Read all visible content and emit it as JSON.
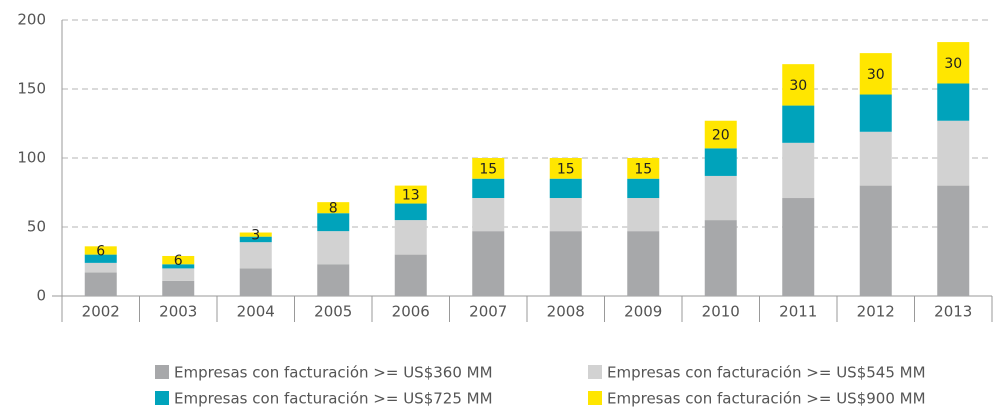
{
  "chart_data": {
    "type": "stacked_bar",
    "categories": [
      "2002",
      "2003",
      "2004",
      "2005",
      "2006",
      "2007",
      "2008",
      "2009",
      "2010",
      "2011",
      "2012",
      "2013"
    ],
    "series": [
      {
        "name": "Empresas con facturación >= US$360 MM",
        "color": "#a7a8aa",
        "values": [
          17,
          11,
          20,
          23,
          30,
          47,
          47,
          47,
          55,
          71,
          80,
          80
        ]
      },
      {
        "name": "Empresas con facturación >= US$545 MM",
        "color": "#d2d2d2",
        "values": [
          7,
          9,
          19,
          24,
          25,
          24,
          24,
          24,
          32,
          40,
          39,
          47
        ]
      },
      {
        "name": "Empresas con facturación >= US$725 MM",
        "color": "#00a3bb",
        "values": [
          6,
          3,
          4,
          13,
          12,
          14,
          14,
          14,
          20,
          27,
          27,
          27
        ]
      },
      {
        "name": "Empresas con facturación >= US$900 MM",
        "color": "#ffe600",
        "values": [
          6,
          6,
          3,
          8,
          13,
          15,
          15,
          15,
          20,
          30,
          30,
          30
        ]
      }
    ],
    "ylim": [
      0,
      200
    ],
    "yticks": [
      0,
      50,
      100,
      150,
      200
    ],
    "grid": true
  }
}
